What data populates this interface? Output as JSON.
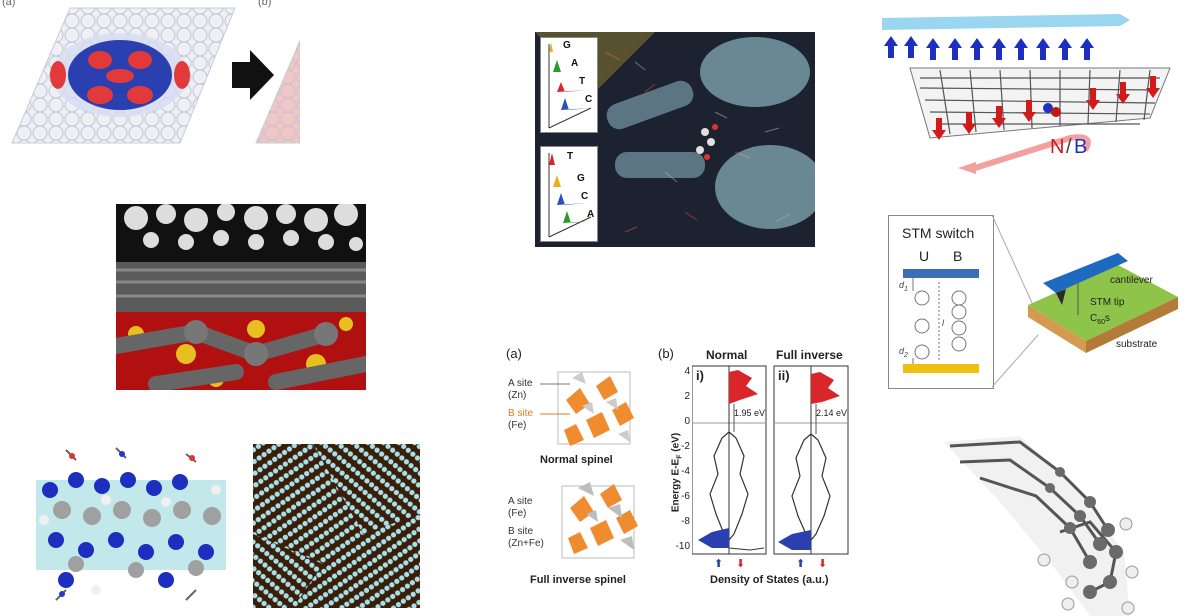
{
  "top_left": {
    "label_a": "(a)",
    "label_b": "(b)",
    "colors": {
      "red": "#e23a3a",
      "blue": "#2a3fb0",
      "lattice": "#c9ccd6"
    }
  },
  "dna_panel": {
    "box1": {
      "letters": [
        "G",
        "A",
        "T",
        "C"
      ]
    },
    "box2": {
      "letters": [
        "T",
        "G",
        "C",
        "A"
      ]
    },
    "letter_colors": {
      "G": "#e8b020",
      "A": "#2a9a2a",
      "T": "#d8262a",
      "C": "#2a50c0"
    }
  },
  "graphene_nb": {
    "label_n": "N",
    "label_slash": "/",
    "label_b": "B",
    "colors": {
      "arrow_top": "#9ad6ef",
      "arrow_bottom": "#f2a0a0",
      "spin_up": "#1c2fbf",
      "spin_down": "#d21a1a"
    }
  },
  "stm": {
    "box_title": "STM switch",
    "col_u": "U",
    "col_b": "B",
    "d1": "d",
    "d1_sub": "1",
    "d2": "d",
    "d2_sub": "2",
    "l": "l",
    "cantilever": "cantilever",
    "stm_tip": "STM tip",
    "c60": "C",
    "c60_sub": "60",
    "c60_suffix": "s",
    "substrate": "substrate"
  },
  "spinel": {
    "label_a": "(a)",
    "label_b": "(b)",
    "normal": {
      "a_site": "A site",
      "a_el": "(Zn)",
      "b_site": "B site",
      "b_el": "(Fe)",
      "caption": "Normal spinel"
    },
    "inverse": {
      "a_site": "A site",
      "a_el": "(Fe)",
      "b_site": "B site",
      "b_el": "(Zn+Fe)",
      "caption": "Full inverse spinel"
    },
    "dos": {
      "title_normal": "Normal",
      "title_inverse": "Full inverse",
      "roman_i": "i)",
      "roman_ii": "ii)",
      "gap_i": "1.95 eV",
      "gap_ii": "2.14 eV",
      "ylabel": "Energy E-E",
      "ylabel_sub": "F",
      "ylabel_unit": " (eV)",
      "xlabel": "Density of States (a.u.)",
      "yticks": [
        "4",
        "2",
        "0",
        "-2",
        "-4",
        "-6",
        "-8",
        "-10"
      ],
      "up_arrow": "⬆",
      "down_arrow": "⬇"
    }
  }
}
